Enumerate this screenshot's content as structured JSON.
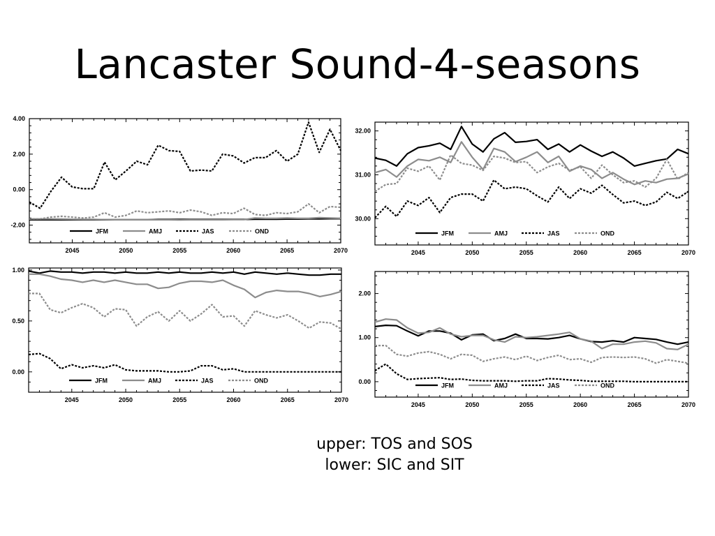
{
  "slide": {
    "title": "Lancaster Sound-4-seasons",
    "caption_line1": "upper: TOS and SOS",
    "caption_line2": "lower: SIC and SIT"
  },
  "style": {
    "series_colors": {
      "JFM": "#000000",
      "AMJ": "#8c8c8c",
      "JAS": "#000000",
      "OND": "#8c8c8c"
    },
    "series_dash": {
      "JFM": "solid",
      "AMJ": "solid",
      "JAS": "dotted",
      "OND": "dotted"
    }
  },
  "chart_data": [
    {
      "type": "line",
      "title": "",
      "xlabel": "",
      "ylabel": "",
      "xlim": [
        2041,
        2070
      ],
      "ylim": [
        -3.0,
        4.0
      ],
      "x_ticks": [
        2045,
        2050,
        2055,
        2060,
        2065,
        2070
      ],
      "x_tick_labels": [
        "2045",
        "2050",
        "2055",
        "2060",
        "2065",
        "2070"
      ],
      "y_ticks": [
        -2.0,
        0.0,
        2.0,
        4.0
      ],
      "y_tick_labels": [
        "-2.00",
        "0.00",
        "2.00",
        "4.00"
      ],
      "grid": false,
      "legend_position": "bottom-inside",
      "x": [
        2041,
        2042,
        2043,
        2044,
        2045,
        2046,
        2047,
        2048,
        2049,
        2050,
        2051,
        2052,
        2053,
        2054,
        2055,
        2056,
        2057,
        2058,
        2059,
        2060,
        2061,
        2062,
        2063,
        2064,
        2065,
        2066,
        2067,
        2068,
        2069,
        2070
      ],
      "series": [
        {
          "name": "JFM",
          "values": [
            -1.7,
            -1.7,
            -1.7,
            -1.7,
            -1.7,
            -1.7,
            -1.7,
            -1.7,
            -1.7,
            -1.7,
            -1.7,
            -1.7,
            -1.68,
            -1.68,
            -1.68,
            -1.68,
            -1.68,
            -1.68,
            -1.68,
            -1.68,
            -1.68,
            -1.67,
            -1.67,
            -1.67,
            -1.66,
            -1.66,
            -1.65,
            -1.65,
            -1.64,
            -1.64
          ]
        },
        {
          "name": "AMJ",
          "values": [
            -1.65,
            -1.65,
            -1.65,
            -1.66,
            -1.67,
            -1.68,
            -1.68,
            -1.69,
            -1.7,
            -1.7,
            -1.7,
            -1.7,
            -1.7,
            -1.7,
            -1.71,
            -1.7,
            -1.7,
            -1.7,
            -1.7,
            -1.69,
            -1.69,
            -1.6,
            -1.62,
            -1.62,
            -1.6,
            -1.62,
            -1.62,
            -1.58,
            -1.6,
            -1.62
          ]
        },
        {
          "name": "JAS",
          "values": [
            -0.7,
            -1.05,
            -0.1,
            0.7,
            0.15,
            0.05,
            0.05,
            1.55,
            0.55,
            1.05,
            1.6,
            1.4,
            2.5,
            2.2,
            2.15,
            1.05,
            1.1,
            1.05,
            2.0,
            1.9,
            1.5,
            1.8,
            1.8,
            2.2,
            1.6,
            2.0,
            3.8,
            2.1,
            3.4,
            2.2
          ]
        },
        {
          "name": "OND",
          "values": [
            -1.65,
            -1.65,
            -1.55,
            -1.5,
            -1.55,
            -1.6,
            -1.55,
            -1.3,
            -1.55,
            -1.45,
            -1.2,
            -1.3,
            -1.25,
            -1.2,
            -1.3,
            -1.15,
            -1.25,
            -1.45,
            -1.3,
            -1.35,
            -1.05,
            -1.4,
            -1.45,
            -1.3,
            -1.35,
            -1.25,
            -0.8,
            -1.3,
            -0.95,
            -1.0
          ]
        }
      ]
    },
    {
      "type": "line",
      "title": "",
      "xlabel": "",
      "ylabel": "",
      "xlim": [
        2041,
        2070
      ],
      "ylim": [
        29.4,
        32.2
      ],
      "x_ticks": [
        2045,
        2050,
        2055,
        2060,
        2065,
        2070
      ],
      "x_tick_labels": [
        "2045",
        "2050",
        "2055",
        "2060",
        "2065",
        "2070"
      ],
      "y_ticks": [
        30.0,
        31.0,
        32.0
      ],
      "y_tick_labels": [
        "30.00",
        "31.00",
        "32.00"
      ],
      "grid": false,
      "legend_position": "bottom-inside",
      "x": [
        2041,
        2042,
        2043,
        2044,
        2045,
        2046,
        2047,
        2048,
        2049,
        2050,
        2051,
        2052,
        2053,
        2054,
        2055,
        2056,
        2057,
        2058,
        2059,
        2060,
        2061,
        2062,
        2063,
        2064,
        2065,
        2066,
        2067,
        2068,
        2069,
        2070
      ],
      "series": [
        {
          "name": "JFM",
          "values": [
            31.38,
            31.33,
            31.2,
            31.48,
            31.62,
            31.66,
            31.72,
            31.58,
            32.1,
            31.7,
            31.52,
            31.82,
            31.96,
            31.74,
            31.76,
            31.8,
            31.58,
            31.7,
            31.52,
            31.68,
            31.54,
            31.42,
            31.52,
            31.38,
            31.2,
            31.26,
            31.32,
            31.36,
            31.58,
            31.48
          ]
        },
        {
          "name": "AMJ",
          "values": [
            31.05,
            31.12,
            30.95,
            31.2,
            31.35,
            31.32,
            31.4,
            31.28,
            31.75,
            31.4,
            31.12,
            31.6,
            31.52,
            31.3,
            31.4,
            31.52,
            31.28,
            31.42,
            31.08,
            31.2,
            31.12,
            30.92,
            31.05,
            30.9,
            30.78,
            30.86,
            30.82,
            30.9,
            30.92,
            31.02
          ]
        },
        {
          "name": "JAS",
          "values": [
            30.02,
            30.28,
            30.05,
            30.4,
            30.3,
            30.48,
            30.14,
            30.48,
            30.56,
            30.56,
            30.4,
            30.88,
            30.68,
            30.72,
            30.68,
            30.52,
            30.38,
            30.72,
            30.46,
            30.68,
            30.58,
            30.76,
            30.55,
            30.36,
            30.4,
            30.3,
            30.38,
            30.6,
            30.46,
            30.62
          ]
        },
        {
          "name": "OND",
          "values": [
            30.62,
            30.78,
            30.8,
            31.15,
            31.08,
            31.2,
            30.88,
            31.45,
            31.26,
            31.22,
            31.1,
            31.42,
            31.38,
            31.28,
            31.3,
            31.05,
            31.18,
            31.26,
            31.1,
            31.18,
            30.92,
            31.22,
            31.0,
            30.82,
            30.86,
            30.72,
            30.92,
            31.35,
            30.9,
            31.05
          ]
        }
      ]
    },
    {
      "type": "line",
      "title": "",
      "xlabel": "",
      "ylabel": "",
      "xlim": [
        2041,
        2070
      ],
      "ylim": [
        -0.2,
        1.02
      ],
      "x_ticks": [
        2045,
        2050,
        2055,
        2060,
        2065,
        2070
      ],
      "x_tick_labels": [
        "2045",
        "2050",
        "2055",
        "2060",
        "2065",
        "2070"
      ],
      "y_ticks": [
        0.0,
        0.5,
        1.0
      ],
      "y_tick_labels": [
        "0.00",
        "0.50",
        "1.00"
      ],
      "grid": false,
      "legend_position": "bottom-inside",
      "x": [
        2041,
        2042,
        2043,
        2044,
        2045,
        2046,
        2047,
        2048,
        2049,
        2050,
        2051,
        2052,
        2053,
        2054,
        2055,
        2056,
        2057,
        2058,
        2059,
        2060,
        2061,
        2062,
        2063,
        2064,
        2065,
        2066,
        2067,
        2068,
        2069,
        2070
      ],
      "series": [
        {
          "name": "JFM",
          "values": [
            0.99,
            0.97,
            0.99,
            0.98,
            0.98,
            0.97,
            0.98,
            0.98,
            0.97,
            0.98,
            0.97,
            0.97,
            0.98,
            0.97,
            0.98,
            0.97,
            0.97,
            0.98,
            0.97,
            0.98,
            0.96,
            0.98,
            0.97,
            0.96,
            0.97,
            0.96,
            0.95,
            0.95,
            0.96,
            0.96
          ]
        },
        {
          "name": "AMJ",
          "values": [
            0.96,
            0.96,
            0.94,
            0.91,
            0.9,
            0.88,
            0.9,
            0.88,
            0.9,
            0.88,
            0.86,
            0.86,
            0.82,
            0.83,
            0.87,
            0.89,
            0.89,
            0.88,
            0.9,
            0.85,
            0.81,
            0.73,
            0.78,
            0.8,
            0.79,
            0.79,
            0.77,
            0.74,
            0.76,
            0.79
          ]
        },
        {
          "name": "JAS",
          "values": [
            0.17,
            0.18,
            0.13,
            0.03,
            0.07,
            0.04,
            0.06,
            0.04,
            0.07,
            0.02,
            0.01,
            0.01,
            0.01,
            0.0,
            0.0,
            0.01,
            0.06,
            0.06,
            0.02,
            0.03,
            0.0,
            0.0,
            0.0,
            0.0,
            0.0,
            0.0,
            0.0,
            0.0,
            0.0,
            0.0
          ]
        },
        {
          "name": "OND",
          "values": [
            0.77,
            0.77,
            0.61,
            0.58,
            0.63,
            0.67,
            0.63,
            0.54,
            0.62,
            0.61,
            0.45,
            0.54,
            0.59,
            0.5,
            0.6,
            0.5,
            0.57,
            0.66,
            0.54,
            0.55,
            0.45,
            0.6,
            0.56,
            0.53,
            0.56,
            0.5,
            0.43,
            0.49,
            0.48,
            0.42
          ]
        }
      ]
    },
    {
      "type": "line",
      "title": "",
      "xlabel": "",
      "ylabel": "",
      "xlim": [
        2041,
        2070
      ],
      "ylim": [
        -0.35,
        2.5
      ],
      "x_ticks": [
        2045,
        2050,
        2055,
        2060,
        2065,
        2070
      ],
      "x_tick_labels": [
        "2045",
        "2050",
        "2055",
        "2060",
        "2065",
        "2070"
      ],
      "y_ticks": [
        0.0,
        1.0,
        2.0
      ],
      "y_tick_labels": [
        "0.00",
        "1.00",
        "2.00"
      ],
      "grid": false,
      "legend_position": "bottom-inside",
      "x": [
        2041,
        2042,
        2043,
        2044,
        2045,
        2046,
        2047,
        2048,
        2049,
        2050,
        2051,
        2052,
        2053,
        2054,
        2055,
        2056,
        2057,
        2058,
        2059,
        2060,
        2061,
        2062,
        2063,
        2064,
        2065,
        2066,
        2067,
        2068,
        2069,
        2070
      ],
      "series": [
        {
          "name": "JFM",
          "values": [
            1.25,
            1.28,
            1.27,
            1.15,
            1.04,
            1.15,
            1.15,
            1.1,
            0.95,
            1.06,
            1.08,
            0.93,
            0.98,
            1.08,
            0.98,
            0.98,
            0.97,
            1.0,
            1.05,
            0.97,
            0.91,
            0.9,
            0.93,
            0.9,
            1.0,
            0.98,
            0.96,
            0.9,
            0.85,
            0.9
          ]
        },
        {
          "name": "AMJ",
          "values": [
            1.35,
            1.42,
            1.4,
            1.22,
            1.1,
            1.12,
            1.22,
            1.08,
            1.02,
            1.05,
            1.05,
            0.95,
            0.9,
            1.02,
            1.0,
            1.02,
            1.05,
            1.08,
            1.12,
            0.97,
            0.92,
            0.75,
            0.85,
            0.85,
            0.9,
            0.92,
            0.88,
            0.75,
            0.73,
            0.85
          ]
        },
        {
          "name": "JAS",
          "values": [
            0.25,
            0.4,
            0.18,
            0.05,
            0.07,
            0.08,
            0.09,
            0.05,
            0.06,
            0.03,
            0.02,
            0.02,
            0.02,
            0.01,
            0.02,
            0.02,
            0.07,
            0.06,
            0.04,
            0.03,
            0.01,
            0.01,
            0.01,
            0.01,
            0.0,
            0.0,
            0.0,
            0.0,
            0.0,
            0.0
          ]
        },
        {
          "name": "OND",
          "values": [
            0.82,
            0.82,
            0.62,
            0.58,
            0.65,
            0.68,
            0.62,
            0.52,
            0.62,
            0.6,
            0.46,
            0.52,
            0.56,
            0.5,
            0.58,
            0.48,
            0.55,
            0.6,
            0.5,
            0.52,
            0.44,
            0.55,
            0.56,
            0.55,
            0.56,
            0.52,
            0.42,
            0.5,
            0.46,
            0.42
          ]
        }
      ]
    }
  ]
}
